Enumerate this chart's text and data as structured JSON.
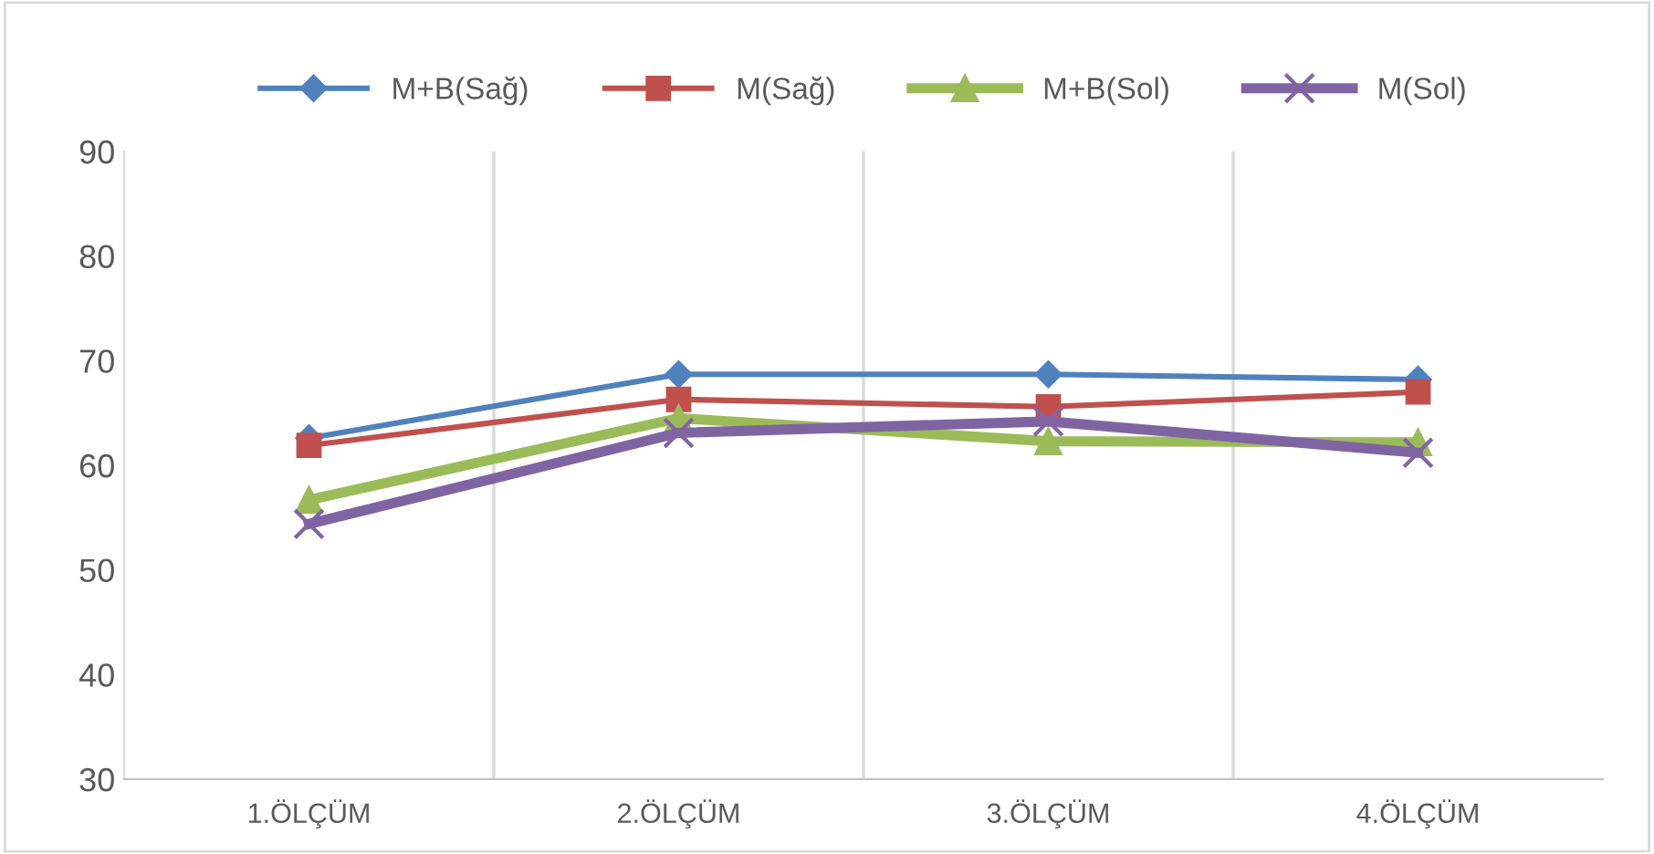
{
  "chart_data": {
    "type": "line",
    "categories": [
      "1.ÖLÇÜM",
      "2.ÖLÇÜM",
      "3.ÖLÇÜM",
      "4.ÖLÇÜM"
    ],
    "series": [
      {
        "name": "M+B(Sağ)",
        "color": "#4f81bd",
        "marker": "diamond",
        "values": [
          62.6,
          68.7,
          68.7,
          68.2
        ]
      },
      {
        "name": "M(Sağ)",
        "color": "#c0504d",
        "marker": "square",
        "values": [
          61.9,
          66.3,
          65.6,
          67.0
        ]
      },
      {
        "name": "M+B(Sol)",
        "color": "#9bbb59",
        "marker": "triangle",
        "values": [
          56.7,
          64.5,
          62.3,
          62.2
        ]
      },
      {
        "name": "M(Sol)",
        "color": "#8064a2",
        "marker": "cross",
        "values": [
          54.4,
          63.1,
          64.2,
          61.2
        ]
      }
    ],
    "ylim": [
      30,
      90
    ],
    "yticks": [
      30,
      40,
      50,
      60,
      70,
      80,
      90
    ],
    "grid": "x",
    "legend": "top",
    "line_style": "solid"
  }
}
